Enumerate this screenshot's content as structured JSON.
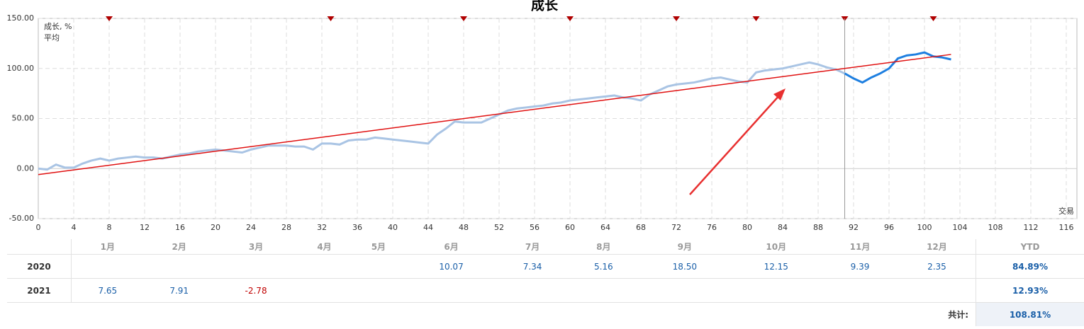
{
  "chart_data": {
    "type": "line",
    "title": "成长",
    "x_label": "交易",
    "xlim": [
      0,
      117.2
    ],
    "ylim": [
      -50,
      150
    ],
    "xticks": [
      0,
      4,
      8,
      12,
      16,
      20,
      24,
      28,
      32,
      36,
      40,
      44,
      48,
      52,
      56,
      60,
      64,
      68,
      72,
      76,
      80,
      84,
      88,
      92,
      96,
      100,
      104,
      108,
      112,
      116
    ],
    "yticks": [
      {
        "value": -50,
        "label": "-50.00"
      },
      {
        "value": 0,
        "label": "0.00"
      },
      {
        "value": 50,
        "label": "50.00"
      },
      {
        "value": 100,
        "label": "100.00"
      },
      {
        "value": 150,
        "label": "150.00"
      }
    ],
    "grid": true,
    "legend": "top-left",
    "markers_x": [
      8,
      33,
      48,
      60,
      72,
      81,
      91,
      101
    ],
    "marker_color": "#b00000",
    "cursor_x": 91,
    "highlight_color": "#1e7fe0",
    "series": [
      {
        "name": "成长, %",
        "color": "#a9c4e4",
        "x": [
          0,
          1,
          2,
          3,
          4,
          5,
          6,
          7,
          8,
          9,
          10,
          11,
          12,
          13,
          14,
          15,
          16,
          17,
          18,
          19,
          20,
          21,
          22,
          23,
          24,
          25,
          26,
          27,
          28,
          29,
          30,
          31,
          32,
          33,
          34,
          35,
          36,
          37,
          38,
          39,
          40,
          41,
          42,
          43,
          44,
          45,
          46,
          47,
          48,
          49,
          50,
          51,
          52,
          53,
          54,
          55,
          56,
          57,
          58,
          59,
          60,
          61,
          62,
          63,
          64,
          65,
          66,
          67,
          68,
          69,
          70,
          71,
          72,
          73,
          74,
          75,
          76,
          77,
          78,
          79,
          80,
          81,
          82,
          83,
          84,
          85,
          86,
          87,
          88,
          89,
          90,
          91,
          92,
          93,
          94,
          95,
          96,
          97,
          98,
          99,
          100,
          101,
          102,
          103
        ],
        "values": [
          0,
          -1,
          4,
          1,
          1,
          5,
          8,
          10,
          8,
          10,
          11,
          12,
          11,
          11,
          10,
          12,
          14,
          15,
          17,
          18,
          19,
          18,
          17,
          16,
          19,
          21,
          23,
          23,
          23,
          22,
          22,
          19,
          25,
          25,
          24,
          28,
          29,
          29,
          31,
          30,
          29,
          28,
          27,
          26,
          25,
          34,
          40,
          47,
          46,
          46,
          46,
          50,
          54,
          58,
          60,
          61,
          62,
          63,
          65,
          66,
          68,
          69,
          70,
          71,
          72,
          73,
          71,
          70,
          68,
          74,
          78,
          82,
          84,
          85,
          86,
          88,
          90,
          91,
          89,
          87,
          86,
          96,
          98,
          99,
          100,
          102,
          104,
          106,
          104,
          101,
          99,
          95,
          90,
          86,
          91,
          95,
          100,
          110,
          113,
          114,
          116,
          112,
          111,
          109
        ]
      },
      {
        "name": "平均",
        "color": "#e01010",
        "x": [
          0,
          103
        ],
        "values": [
          -6,
          114
        ]
      }
    ]
  },
  "table": {
    "columns": [
      "1月",
      "2月",
      "3月",
      "4月",
      "5月",
      "6月",
      "7月",
      "8月",
      "9月",
      "10月",
      "11月",
      "12月"
    ],
    "ytd_header": "YTD",
    "rows": [
      {
        "label": "2020",
        "cells": [
          null,
          null,
          null,
          null,
          null,
          "10.07",
          "7.34",
          "5.16",
          "18.50",
          "12.15",
          "9.39",
          "2.35"
        ],
        "ytd": "84.89%"
      },
      {
        "label": "2021",
        "cells": [
          "7.65",
          "7.91",
          "-2.78",
          null,
          null,
          null,
          null,
          null,
          null,
          null,
          null,
          null
        ],
        "ytd": "12.93%"
      }
    ],
    "total_label": "共计:",
    "total": "108.81%"
  }
}
